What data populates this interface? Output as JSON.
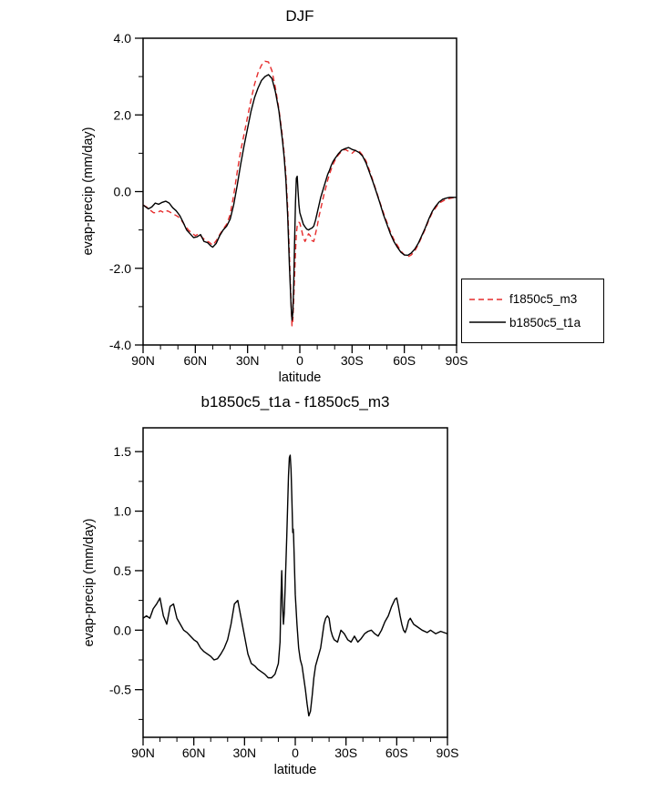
{
  "page": {
    "background": "#ffffff"
  },
  "chart_data": [
    {
      "type": "line",
      "title": "DJF",
      "xlabel": "latitude",
      "ylabel": "evap-precip (mm/day)",
      "xlim": [
        90,
        -90
      ],
      "ylim": [
        -4,
        4
      ],
      "grid": false,
      "legend_position": "right-outside",
      "xticks": {
        "values": [
          90,
          60,
          30,
          0,
          -30,
          -60,
          -90
        ],
        "labels": [
          "90N",
          "60N",
          "30N",
          "0",
          "30S",
          "60S",
          "90S"
        ],
        "minor_step": 10
      },
      "yticks": {
        "values": [
          -4,
          -2,
          0,
          2,
          4
        ],
        "labels": [
          "-4.0",
          "-2.0",
          "0.0",
          "2.0",
          "4.0"
        ],
        "minor_step": 1
      },
      "series": [
        {
          "name": "f1850c5_m3",
          "color": "#e62c2c",
          "dash": "6,4",
          "lat": [
            90,
            88,
            86,
            84,
            82,
            80,
            78,
            76,
            74,
            72,
            70,
            68,
            66,
            64,
            62,
            60,
            58,
            56,
            54,
            52,
            50,
            48,
            46,
            44,
            42,
            40,
            38,
            36,
            34,
            32,
            30,
            28,
            26,
            24,
            22,
            20,
            18,
            16,
            14,
            12,
            10,
            9,
            8,
            7,
            6,
            5,
            4.5,
            4,
            3.5,
            3,
            2.5,
            2,
            1.5,
            1,
            0.5,
            0,
            -1,
            -2,
            -3,
            -4,
            -5,
            -6,
            -7,
            -8,
            -9,
            -10,
            -11,
            -12,
            -13,
            -14,
            -15,
            -16,
            -17,
            -18,
            -19,
            -20,
            -22,
            -24,
            -26,
            -28,
            -30,
            -32,
            -34,
            -36,
            -38,
            -40,
            -42,
            -44,
            -46,
            -48,
            -50,
            -52,
            -54,
            -56,
            -58,
            -60,
            -62,
            -64,
            -66,
            -68,
            -70,
            -72,
            -74,
            -76,
            -78,
            -80,
            -82,
            -84,
            -86,
            -88,
            -90
          ],
          "values": [
            -0.35,
            -0.4,
            -0.48,
            -0.55,
            -0.55,
            -0.5,
            -0.55,
            -0.5,
            -0.55,
            -0.6,
            -0.65,
            -0.75,
            -0.88,
            -1.0,
            -1.08,
            -1.15,
            -1.1,
            -1.2,
            -1.28,
            -1.32,
            -1.4,
            -1.28,
            -1.12,
            -0.98,
            -0.85,
            -0.6,
            -0.1,
            0.5,
            1.05,
            1.5,
            1.95,
            2.4,
            2.8,
            3.1,
            3.3,
            3.4,
            3.38,
            3.15,
            2.7,
            2.15,
            1.45,
            1.0,
            0.45,
            -0.4,
            -1.6,
            -2.9,
            -3.5,
            -3.35,
            -2.8,
            -2.2,
            -1.6,
            -1.1,
            -0.9,
            -0.82,
            -0.8,
            -0.82,
            -1.0,
            -1.2,
            -1.3,
            -1.2,
            -1.1,
            -1.15,
            -1.28,
            -1.3,
            -1.1,
            -0.9,
            -0.65,
            -0.45,
            -0.25,
            -0.05,
            0.12,
            0.3,
            0.45,
            0.58,
            0.7,
            0.8,
            0.95,
            1.05,
            1.1,
            1.05,
            1.0,
            1.08,
            1.06,
            0.95,
            0.8,
            0.55,
            0.28,
            0.0,
            -0.28,
            -0.55,
            -0.8,
            -1.05,
            -1.25,
            -1.4,
            -1.55,
            -1.65,
            -1.7,
            -1.65,
            -1.55,
            -1.38,
            -1.18,
            -0.98,
            -0.75,
            -0.55,
            -0.42,
            -0.3,
            -0.25,
            -0.2,
            -0.18,
            -0.16,
            -0.15
          ]
        },
        {
          "name": "b1850c5_t1a",
          "color": "#000000",
          "dash": "",
          "lat": [
            90,
            87,
            85,
            83,
            81,
            79,
            77,
            75,
            73,
            71,
            69,
            67,
            65,
            63,
            61,
            59,
            57,
            55,
            53,
            51,
            50,
            48,
            46,
            44,
            42,
            40,
            38,
            36,
            34,
            32,
            30,
            28,
            26,
            24,
            22,
            20,
            18,
            16,
            14,
            12,
            10,
            9,
            8,
            7,
            6,
            5,
            4.5,
            4,
            3.5,
            3,
            2.5,
            2,
            1.5,
            1,
            0.5,
            0,
            -1,
            -2,
            -3,
            -4,
            -5,
            -6,
            -7,
            -8,
            -9,
            -10,
            -11,
            -12,
            -13,
            -14,
            -15,
            -16,
            -17,
            -18,
            -19,
            -20,
            -22,
            -24,
            -26,
            -28,
            -30,
            -32,
            -34,
            -36,
            -38,
            -40,
            -42,
            -44,
            -46,
            -48,
            -50,
            -52,
            -54,
            -56,
            -58,
            -60,
            -62,
            -64,
            -66,
            -68,
            -70,
            -72,
            -74,
            -76,
            -78,
            -80,
            -82,
            -84,
            -86,
            -88,
            -90
          ],
          "values": [
            -0.35,
            -0.45,
            -0.4,
            -0.3,
            -0.33,
            -0.28,
            -0.25,
            -0.3,
            -0.42,
            -0.5,
            -0.62,
            -0.8,
            -1.0,
            -1.1,
            -1.2,
            -1.18,
            -1.12,
            -1.3,
            -1.33,
            -1.42,
            -1.45,
            -1.35,
            -1.15,
            -1.0,
            -0.9,
            -0.72,
            -0.35,
            0.15,
            0.7,
            1.2,
            1.65,
            2.1,
            2.45,
            2.7,
            2.9,
            3.0,
            3.05,
            2.95,
            2.6,
            2.1,
            1.35,
            0.9,
            0.3,
            -0.6,
            -1.9,
            -3.0,
            -3.35,
            -3.15,
            -2.4,
            -1.3,
            -0.3,
            0.35,
            0.4,
            0.0,
            -0.35,
            -0.55,
            -0.7,
            -0.85,
            -0.92,
            -0.98,
            -1.0,
            -0.97,
            -0.95,
            -0.9,
            -0.75,
            -0.55,
            -0.35,
            -0.15,
            0.0,
            0.15,
            0.3,
            0.45,
            0.55,
            0.68,
            0.78,
            0.85,
            0.98,
            1.08,
            1.12,
            1.15,
            1.1,
            1.07,
            1.02,
            0.93,
            0.75,
            0.5,
            0.25,
            -0.02,
            -0.3,
            -0.6,
            -0.85,
            -1.1,
            -1.3,
            -1.45,
            -1.58,
            -1.65,
            -1.66,
            -1.6,
            -1.5,
            -1.35,
            -1.15,
            -0.95,
            -0.72,
            -0.52,
            -0.38,
            -0.27,
            -0.2,
            -0.17,
            -0.15,
            -0.15,
            -0.15
          ]
        }
      ]
    },
    {
      "type": "line",
      "title": "b1850c5_t1a - f1850c5_m3",
      "xlabel": "latitude",
      "ylabel": "evap-precip (mm/day)",
      "xlim": [
        90,
        -90
      ],
      "ylim": [
        -0.9,
        1.7
      ],
      "grid": false,
      "legend_position": "none",
      "xticks": {
        "values": [
          90,
          60,
          30,
          0,
          -30,
          -60,
          -90
        ],
        "labels": [
          "90N",
          "60N",
          "30N",
          "0",
          "30S",
          "60S",
          "90S"
        ],
        "minor_step": 10
      },
      "yticks": {
        "values": [
          -0.5,
          0,
          0.5,
          1,
          1.5
        ],
        "labels": [
          "-0.5",
          "0.0",
          "0.5",
          "1.0",
          "1.5"
        ],
        "minor_step": 0.25
      },
      "series": [
        {
          "name": "b1850c5_t1a - f1850c5_m3",
          "color": "#000000",
          "dash": "",
          "lat": [
            90,
            88,
            86,
            84,
            82,
            80,
            78,
            76,
            74,
            72,
            70,
            68,
            66,
            64,
            62,
            60,
            58,
            56,
            54,
            52,
            50,
            48,
            46,
            44,
            42,
            40,
            38,
            36,
            34,
            32,
            30,
            28,
            26,
            24,
            22,
            20,
            18,
            16,
            14,
            12,
            10,
            9,
            8.5,
            8,
            7.5,
            7,
            6.5,
            6,
            5,
            4,
            3.5,
            3,
            2.5,
            2,
            1.5,
            1.2,
            1,
            0.5,
            0,
            -1,
            -2,
            -3,
            -4,
            -5,
            -6,
            -7,
            -8,
            -9,
            -10,
            -11,
            -12,
            -13,
            -14,
            -15,
            -16,
            -17,
            -18,
            -19,
            -20,
            -21,
            -22,
            -23,
            -25,
            -27,
            -29,
            -31,
            -33,
            -35,
            -37,
            -39,
            -41,
            -43,
            -45,
            -47,
            -49,
            -51,
            -53,
            -55,
            -57,
            -59,
            -60,
            -61,
            -62,
            -63,
            -64,
            -65,
            -66,
            -67,
            -68,
            -70,
            -72,
            -75,
            -78,
            -80,
            -83,
            -86,
            -90
          ],
          "values": [
            0.1,
            0.12,
            0.1,
            0.18,
            0.22,
            0.27,
            0.12,
            0.05,
            0.2,
            0.22,
            0.1,
            0.05,
            0.0,
            -0.02,
            -0.05,
            -0.08,
            -0.1,
            -0.15,
            -0.18,
            -0.2,
            -0.22,
            -0.25,
            -0.24,
            -0.2,
            -0.15,
            -0.08,
            0.05,
            0.22,
            0.25,
            0.1,
            -0.05,
            -0.2,
            -0.28,
            -0.3,
            -0.33,
            -0.35,
            -0.37,
            -0.4,
            -0.4,
            -0.37,
            -0.28,
            -0.1,
            0.25,
            0.5,
            0.2,
            0.05,
            0.15,
            0.35,
            0.8,
            1.3,
            1.45,
            1.47,
            1.35,
            1.1,
            0.82,
            0.85,
            0.8,
            0.55,
            0.3,
            0.05,
            -0.15,
            -0.25,
            -0.3,
            -0.4,
            -0.5,
            -0.62,
            -0.72,
            -0.68,
            -0.55,
            -0.4,
            -0.3,
            -0.25,
            -0.2,
            -0.15,
            -0.05,
            0.05,
            0.1,
            0.12,
            0.1,
            0.0,
            -0.05,
            -0.08,
            -0.1,
            0.0,
            -0.03,
            -0.08,
            -0.1,
            -0.05,
            -0.1,
            -0.07,
            -0.03,
            -0.01,
            0.0,
            -0.03,
            -0.05,
            0.0,
            0.07,
            0.12,
            0.2,
            0.26,
            0.27,
            0.2,
            0.12,
            0.05,
            0.0,
            -0.02,
            0.02,
            0.08,
            0.1,
            0.05,
            0.03,
            0.0,
            -0.02,
            0.0,
            -0.03,
            -0.01,
            -0.03
          ]
        }
      ]
    }
  ]
}
